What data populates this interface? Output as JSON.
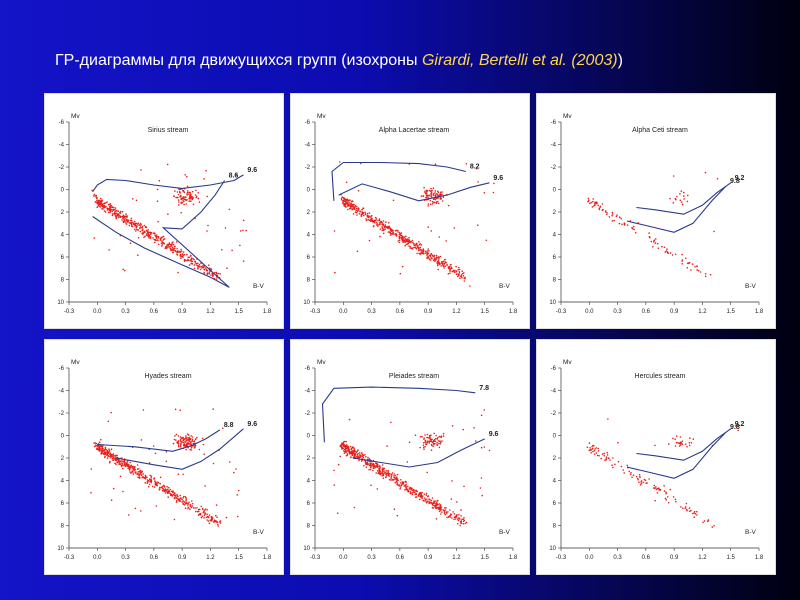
{
  "slide": {
    "title_main": "ГР-диаграммы для движущихся групп (изохроны ",
    "title_cite": "Girardi, Bertelli et al. (2003)",
    "title_end": ")"
  },
  "style": {
    "point_color": "#e8201a",
    "line_color": "#2a3a8a"
  },
  "chart_data": [
    {
      "type": "scatter",
      "title": "Sirius stream",
      "xlabel": "B-V",
      "ylabel": "Mv",
      "xlim": [
        -0.3,
        1.8
      ],
      "ylim": [
        10,
        -6
      ],
      "xticks": [
        "-0.3",
        "0.0",
        "0.3",
        "0.6",
        "0.9",
        "1.2",
        "1.5",
        "1.8"
      ],
      "yticks": [
        "-6",
        "-4",
        "-2",
        "0",
        "2",
        "4",
        "6",
        "8",
        "10"
      ],
      "isochrones": [
        {
          "label": "8.6",
          "points": [
            [
              -0.05,
              2.4
            ],
            [
              0.2,
              3.8
            ],
            [
              0.5,
              5.2
            ],
            [
              0.9,
              6.7
            ],
            [
              1.2,
              7.8
            ],
            [
              1.4,
              8.7
            ],
            [
              0.7,
              3.4
            ],
            [
              0.9,
              3.5
            ],
            [
              1.1,
              2.0
            ],
            [
              1.25,
              0.5
            ],
            [
              1.35,
              -0.8
            ]
          ]
        },
        {
          "label": "9.6",
          "points": [
            [
              -0.05,
              0.2
            ],
            [
              0.0,
              -0.4
            ],
            [
              0.1,
              -0.9
            ],
            [
              0.3,
              -0.8
            ],
            [
              0.6,
              -0.4
            ],
            [
              0.9,
              -0.1
            ],
            [
              1.2,
              -0.4
            ],
            [
              1.45,
              -0.8
            ],
            [
              1.55,
              -1.3
            ]
          ]
        }
      ],
      "scatter": {
        "density": 620,
        "seed": 11
      }
    },
    {
      "type": "scatter",
      "title": "Alpha Lacertae stream",
      "xlabel": "B-V",
      "ylabel": "Mv",
      "xlim": [
        -0.3,
        1.8
      ],
      "ylim": [
        10,
        -6
      ],
      "xticks": [
        "-0.3",
        "0.0",
        "0.3",
        "0.6",
        "0.9",
        "1.2",
        "1.5",
        "1.8"
      ],
      "yticks": [
        "-6",
        "-4",
        "-2",
        "0",
        "2",
        "4",
        "6",
        "8",
        "10"
      ],
      "isochrones": [
        {
          "label": "8.2",
          "points": [
            [
              -0.1,
              1.0
            ],
            [
              -0.12,
              -1.6
            ],
            [
              0.0,
              -2.4
            ],
            [
              0.4,
              -2.4
            ],
            [
              0.8,
              -2.3
            ],
            [
              1.1,
              -2.0
            ],
            [
              1.3,
              -1.6
            ]
          ]
        },
        {
          "label": "9.6",
          "points": [
            [
              -0.05,
              0.5
            ],
            [
              0.2,
              -0.5
            ],
            [
              0.5,
              0.2
            ],
            [
              0.8,
              1.0
            ],
            [
              1.1,
              0.5
            ],
            [
              1.35,
              -0.2
            ],
            [
              1.55,
              -0.6
            ]
          ]
        }
      ],
      "scatter": {
        "density": 590,
        "seed": 23
      }
    },
    {
      "type": "scatter",
      "title": "Alpha Ceti stream",
      "xlabel": "B-V",
      "ylabel": "Mv",
      "xlim": [
        -0.3,
        1.8
      ],
      "ylim": [
        10,
        -6
      ],
      "xticks": [
        "-0.3",
        "0.0",
        "0.3",
        "0.6",
        "0.9",
        "1.2",
        "1.5",
        "1.8"
      ],
      "yticks": [
        "-6",
        "-4",
        "-2",
        "0",
        "2",
        "4",
        "6",
        "8",
        "10"
      ],
      "isochrones": [
        {
          "label": "9.2",
          "points": [
            [
              0.5,
              1.6
            ],
            [
              0.7,
              1.8
            ],
            [
              1.0,
              2.2
            ],
            [
              1.2,
              1.4
            ],
            [
              1.35,
              0.3
            ],
            [
              1.5,
              -0.6
            ]
          ]
        },
        {
          "label": "9.8",
          "points": [
            [
              0.4,
              2.8
            ],
            [
              0.6,
              3.2
            ],
            [
              0.9,
              3.8
            ],
            [
              1.1,
              3.0
            ],
            [
              1.3,
              1.0
            ],
            [
              1.45,
              -0.3
            ]
          ]
        }
      ],
      "scatter": {
        "density": 120,
        "seed": 37
      }
    },
    {
      "type": "scatter",
      "title": "Hyades stream",
      "xlabel": "B-V",
      "ylabel": "Mv",
      "xlim": [
        -0.3,
        1.8
      ],
      "ylim": [
        10,
        -6
      ],
      "xticks": [
        "-0.3",
        "0.0",
        "0.3",
        "0.6",
        "0.9",
        "1.2",
        "1.5",
        "1.8"
      ],
      "yticks": [
        "-6",
        "-4",
        "-2",
        "0",
        "2",
        "4",
        "6",
        "8",
        "10"
      ],
      "isochrones": [
        {
          "label": "8.8",
          "points": [
            [
              0.0,
              0.8
            ],
            [
              0.4,
              1.0
            ],
            [
              0.8,
              1.4
            ],
            [
              1.0,
              0.9
            ],
            [
              1.15,
              0.3
            ],
            [
              1.3,
              -0.5
            ]
          ]
        },
        {
          "label": "9.6",
          "points": [
            [
              0.2,
              2.0
            ],
            [
              0.6,
              2.6
            ],
            [
              0.9,
              3.0
            ],
            [
              1.1,
              2.3
            ],
            [
              1.3,
              1.2
            ],
            [
              1.55,
              -0.6
            ]
          ]
        }
      ],
      "scatter": {
        "density": 640,
        "seed": 47
      }
    },
    {
      "type": "scatter",
      "title": "Pleiades stream",
      "xlabel": "B-V",
      "ylabel": "Mv",
      "xlim": [
        -0.3,
        1.8
      ],
      "ylim": [
        10,
        -6
      ],
      "xticks": [
        "-0.3",
        "0.0",
        "0.3",
        "0.6",
        "0.9",
        "1.2",
        "1.5",
        "1.8"
      ],
      "yticks": [
        "-6",
        "-4",
        "-2",
        "0",
        "2",
        "4",
        "6",
        "8",
        "10"
      ],
      "isochrones": [
        {
          "label": "7.8",
          "points": [
            [
              -0.2,
              0.6
            ],
            [
              -0.22,
              -2.8
            ],
            [
              -0.1,
              -4.2
            ],
            [
              0.3,
              -4.3
            ],
            [
              0.8,
              -4.2
            ],
            [
              1.2,
              -4.0
            ],
            [
              1.4,
              -3.8
            ]
          ]
        },
        {
          "label": "9.6",
          "points": [
            [
              0.1,
              2.0
            ],
            [
              0.4,
              2.4
            ],
            [
              0.7,
              2.8
            ],
            [
              1.0,
              2.4
            ],
            [
              1.25,
              1.3
            ],
            [
              1.5,
              0.3
            ]
          ]
        }
      ],
      "scatter": {
        "density": 660,
        "seed": 59
      }
    },
    {
      "type": "scatter",
      "title": "Hercules stream",
      "xlabel": "B-V",
      "ylabel": "Mv",
      "xlim": [
        -0.3,
        1.8
      ],
      "ylim": [
        10,
        -6
      ],
      "xticks": [
        "-0.3",
        "0.0",
        "0.3",
        "0.6",
        "0.9",
        "1.2",
        "1.5",
        "1.8"
      ],
      "yticks": [
        "-6",
        "-4",
        "-2",
        "0",
        "2",
        "4",
        "6",
        "8",
        "10"
      ],
      "isochrones": [
        {
          "label": "9.2",
          "points": [
            [
              0.5,
              1.6
            ],
            [
              0.7,
              1.8
            ],
            [
              1.0,
              2.2
            ],
            [
              1.2,
              1.4
            ],
            [
              1.35,
              0.3
            ],
            [
              1.5,
              -0.6
            ]
          ]
        },
        {
          "label": "9.8",
          "points": [
            [
              0.4,
              2.8
            ],
            [
              0.6,
              3.2
            ],
            [
              0.9,
              3.8
            ],
            [
              1.1,
              3.0
            ],
            [
              1.3,
              1.0
            ],
            [
              1.45,
              -0.3
            ]
          ]
        }
      ],
      "scatter": {
        "density": 150,
        "seed": 71
      }
    }
  ]
}
